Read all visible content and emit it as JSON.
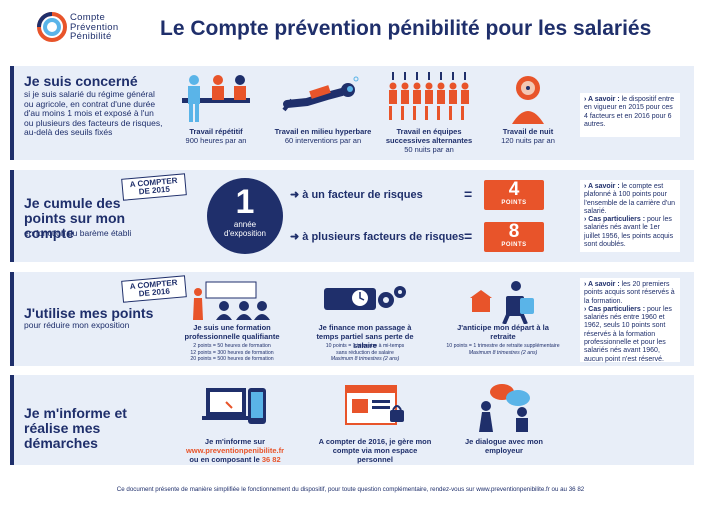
{
  "header": {
    "logo_line1": "Compte",
    "logo_line2": "Prévention",
    "logo_line3": "Pénibilité",
    "title": "Le Compte prévention pénibilité pour les salariés"
  },
  "s1": {
    "title": "Je suis concerné",
    "subtitle": "si je suis salarié du régime général ou agricole, en contrat d'une durée d'au moins 1 mois et exposé à l'un ou plusieurs des facteurs de risques, au-delà des seuils fixés",
    "items": [
      {
        "label": "Travail répétitif",
        "detail": "900 heures par an"
      },
      {
        "label": "Travail en milieu hyperbare",
        "detail": "60 interventions par an"
      },
      {
        "label": "Travail en équipes successives alternantes",
        "detail": "50 nuits par an"
      },
      {
        "label": "Travail de nuit",
        "detail": "120 nuits par an"
      }
    ],
    "aside_bold": "› A savoir :",
    "aside_text": " le dispositif entre en vigueur en 2015 pour ces 4 facteurs et en 2016 pour 6 autres."
  },
  "s2": {
    "badge": "A COMPTER DE 2015",
    "title": "Je cumule des points sur mon compte",
    "subtitle": "en fonction du barème établi",
    "circle_number": "1",
    "circle_text": "année d'exposition",
    "line1": "à un facteur de risques",
    "line2": "à plusieurs facteurs de risques",
    "eq": "=",
    "pts1": "4",
    "pts2": "8",
    "pts_label": "POINTS",
    "aside1_bold": "› A savoir :",
    "aside1_text": " le compte est plafonné à 100 points pour l'ensemble de la carrière d'un salarié.",
    "aside2_bold": "› Cas particuliers :",
    "aside2_text": " pour les salariés nés avant le 1er juillet 1956, les points acquis sont doublés."
  },
  "s3": {
    "badge": "A COMPTER DE 2016",
    "title": "J'utilise mes points",
    "subtitle": "pour réduire mon exposition",
    "item1_label": "Je suis une formation professionnelle qualifiante",
    "item1_d1": "2 points = 50 heures de formation",
    "item1_d2": "12 points = 300 heures de formation",
    "item1_d3": "20 points = 500 heures de formation",
    "item2_label": "Je finance mon passage à temps partiel sans perte de salaire",
    "item2_d1": "10 points = 1 trimestre à mi-temps",
    "item2_d2": "sans réduction de salaire",
    "item2_d3": "Maximum 8 trimestres (2 ans)",
    "item3_label": "J'anticipe mon départ à la retraite",
    "item3_d1": "10 points = 1 trimestre de retraite supplémentaire",
    "item3_d2": "Maximum 8 trimestres (2 ans)",
    "aside1_bold": "› A savoir :",
    "aside1_text": " les 20 premiers points acquis sont réservés à la formation.",
    "aside2_bold": "› Cas particuliers :",
    "aside2_text": " pour les salariés nés entre 1960 et 1962, seuls 10 points sont réservés à la formation professionnelle et pour les salariés nés avant 1960, aucun point n'est réservé."
  },
  "s4": {
    "title": "Je m'informe et réalise mes démarches",
    "item1_a": "Je m'informe sur",
    "item1_link": "www.preventionpenibilite.fr",
    "item1_b": "ou en composant le",
    "item1_phone": "36 82",
    "item2": "A compter de 2016, je gère mon compte via mon espace personnel",
    "item3": "Je dialogue avec mon employeur"
  },
  "footer": {
    "text": "Ce document présente de manière simplifiée le fonctionnement du dispositif, pour toute question complémentaire, rendez-vous sur www.preventionpenibilite.fr ou au 36 82"
  },
  "colors": {
    "navy": "#1f2f6b",
    "orange": "#e8542a",
    "light_blue": "#e8eef8",
    "sky": "#5ab4e8"
  }
}
